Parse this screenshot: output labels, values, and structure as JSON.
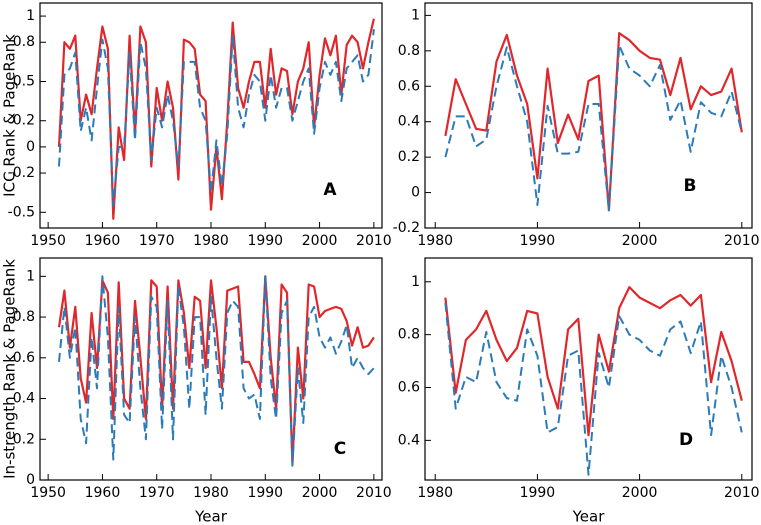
{
  "chart_data": [
    {
      "type": "line",
      "ylabel": "ICC Rank & PageRank",
      "annotation": "A",
      "x": [
        1952,
        1953,
        1954,
        1955,
        1956,
        1957,
        1958,
        1959,
        1960,
        1961,
        1962,
        1963,
        1964,
        1965,
        1966,
        1967,
        1968,
        1969,
        1970,
        1971,
        1972,
        1973,
        1974,
        1975,
        1976,
        1977,
        1978,
        1979,
        1980,
        1981,
        1982,
        1983,
        1984,
        1985,
        1986,
        1987,
        1988,
        1989,
        1990,
        1991,
        1992,
        1993,
        1994,
        1995,
        1996,
        1997,
        1998,
        1999,
        2000,
        2001,
        2002,
        2003,
        2004,
        2005,
        2006,
        2007,
        2008,
        2009,
        2010
      ],
      "xlim": [
        1948.5,
        2011.5
      ],
      "xticks": [
        1950,
        1960,
        1970,
        1980,
        1990,
        2000,
        2010
      ],
      "ylim": [
        -0.62,
        1.1
      ],
      "yticks": [
        -0.5,
        -0.2,
        0,
        0.2,
        0.5,
        0.8,
        1
      ],
      "series": [
        {
          "color": "#e0282c",
          "linestyle": "solid",
          "values": [
            0.0,
            0.8,
            0.75,
            0.85,
            0.2,
            0.4,
            0.25,
            0.6,
            0.92,
            0.75,
            -0.55,
            0.15,
            -0.1,
            0.85,
            0.1,
            0.92,
            0.8,
            -0.15,
            0.45,
            0.2,
            0.5,
            0.3,
            -0.25,
            0.82,
            0.8,
            0.75,
            0.4,
            0.35,
            -0.48,
            0.0,
            -0.4,
            0.2,
            0.95,
            0.45,
            0.3,
            0.5,
            0.65,
            0.65,
            0.3,
            0.75,
            0.4,
            0.6,
            0.58,
            0.25,
            0.5,
            0.6,
            0.8,
            0.15,
            0.55,
            0.83,
            0.7,
            0.85,
            0.4,
            0.78,
            0.85,
            0.8,
            0.6,
            0.8,
            0.98
          ]
        },
        {
          "color": "#2b7bb9",
          "linestyle": "dashed",
          "values": [
            -0.15,
            0.55,
            0.6,
            0.72,
            0.12,
            0.3,
            0.05,
            0.45,
            0.82,
            0.6,
            -0.45,
            0.0,
            0.0,
            0.72,
            0.05,
            0.8,
            0.6,
            -0.1,
            0.3,
            0.15,
            0.4,
            0.2,
            -0.15,
            0.65,
            0.65,
            0.65,
            0.3,
            0.2,
            -0.35,
            0.05,
            -0.3,
            0.1,
            0.85,
            0.3,
            0.15,
            0.4,
            0.55,
            0.5,
            0.2,
            0.55,
            0.3,
            0.45,
            0.45,
            0.2,
            0.35,
            0.5,
            0.6,
            0.1,
            0.45,
            0.65,
            0.55,
            0.65,
            0.35,
            0.6,
            0.65,
            0.7,
            0.5,
            0.55,
            0.9
          ]
        }
      ]
    },
    {
      "type": "line",
      "annotation": "B",
      "x": [
        1981,
        1982,
        1983,
        1984,
        1985,
        1986,
        1987,
        1988,
        1989,
        1990,
        1991,
        1992,
        1993,
        1994,
        1995,
        1996,
        1997,
        1998,
        1999,
        2000,
        2001,
        2002,
        2003,
        2004,
        2005,
        2006,
        2007,
        2008,
        2009,
        2010
      ],
      "xlim": [
        1979,
        2011
      ],
      "xticks": [
        1980,
        1990,
        2000,
        2010
      ],
      "ylim": [
        -0.2,
        1.07
      ],
      "yticks": [
        -0.2,
        0,
        0.2,
        0.4,
        0.6,
        0.8,
        1
      ],
      "series": [
        {
          "color": "#e0282c",
          "linestyle": "solid",
          "values": [
            0.32,
            0.64,
            0.5,
            0.36,
            0.35,
            0.74,
            0.89,
            0.66,
            0.5,
            0.08,
            0.7,
            0.28,
            0.44,
            0.3,
            0.63,
            0.66,
            -0.1,
            0.9,
            0.86,
            0.8,
            0.76,
            0.75,
            0.55,
            0.76,
            0.47,
            0.6,
            0.55,
            0.57,
            0.7,
            0.34
          ]
        },
        {
          "color": "#2b7bb9",
          "linestyle": "dashed",
          "values": [
            0.2,
            0.43,
            0.43,
            0.26,
            0.3,
            0.6,
            0.82,
            0.6,
            0.4,
            -0.07,
            0.49,
            0.22,
            0.22,
            0.23,
            0.5,
            0.5,
            -0.1,
            0.83,
            0.7,
            0.66,
            0.6,
            0.72,
            0.41,
            0.52,
            0.23,
            0.51,
            0.45,
            0.43,
            0.57,
            0.34
          ]
        }
      ]
    },
    {
      "type": "line",
      "ylabel": "In-strength Rank & PageRank",
      "xlabel": "Year",
      "annotation": "C",
      "x": [
        1952,
        1953,
        1954,
        1955,
        1956,
        1957,
        1958,
        1959,
        1960,
        1961,
        1962,
        1963,
        1964,
        1965,
        1966,
        1967,
        1968,
        1969,
        1970,
        1971,
        1972,
        1973,
        1974,
        1975,
        1976,
        1977,
        1978,
        1979,
        1980,
        1981,
        1982,
        1983,
        1984,
        1985,
        1986,
        1987,
        1988,
        1989,
        1990,
        1991,
        1992,
        1993,
        1994,
        1995,
        1996,
        1997,
        1998,
        1999,
        2000,
        2001,
        2002,
        2003,
        2004,
        2005,
        2006,
        2007,
        2008,
        2009,
        2010
      ],
      "xlim": [
        1948.5,
        2011.5
      ],
      "xticks": [
        1950,
        1960,
        1970,
        1980,
        1990,
        2000,
        2010
      ],
      "ylim": [
        0,
        1.09
      ],
      "yticks": [
        0,
        0.2,
        0.4,
        0.6,
        0.8,
        1
      ],
      "series": [
        {
          "color": "#e0282c",
          "linestyle": "solid",
          "values": [
            0.75,
            0.93,
            0.65,
            0.85,
            0.5,
            0.38,
            0.82,
            0.55,
            0.98,
            0.92,
            0.3,
            0.97,
            0.4,
            0.35,
            0.88,
            0.6,
            0.3,
            0.98,
            0.95,
            0.35,
            0.95,
            0.35,
            0.98,
            0.82,
            0.55,
            0.9,
            0.88,
            0.55,
            0.98,
            0.75,
            0.45,
            0.93,
            0.94,
            0.95,
            0.58,
            0.58,
            0.52,
            0.45,
            1.0,
            0.6,
            0.35,
            0.96,
            0.92,
            0.08,
            0.65,
            0.4,
            0.96,
            0.95,
            0.8,
            0.83,
            0.84,
            0.85,
            0.84,
            0.78,
            0.66,
            0.75,
            0.65,
            0.66,
            0.7
          ]
        },
        {
          "color": "#2b7bb9",
          "linestyle": "dashed",
          "values": [
            0.58,
            0.85,
            0.6,
            0.75,
            0.3,
            0.18,
            0.7,
            0.45,
            1.0,
            0.7,
            0.1,
            0.85,
            0.32,
            0.28,
            0.8,
            0.45,
            0.2,
            0.9,
            0.85,
            0.25,
            0.88,
            0.2,
            0.95,
            0.75,
            0.35,
            0.8,
            0.8,
            0.32,
            0.9,
            0.6,
            0.35,
            0.82,
            0.88,
            0.85,
            0.45,
            0.4,
            0.42,
            0.3,
            1.0,
            0.5,
            0.3,
            0.82,
            0.88,
            0.07,
            0.55,
            0.28,
            0.8,
            0.85,
            0.7,
            0.65,
            0.7,
            0.62,
            0.68,
            0.76,
            0.55,
            0.6,
            0.55,
            0.52,
            0.55
          ]
        }
      ]
    },
    {
      "type": "line",
      "xlabel": "Year",
      "annotation": "D",
      "x": [
        1981,
        1982,
        1983,
        1984,
        1985,
        1986,
        1987,
        1988,
        1989,
        1990,
        1991,
        1992,
        1993,
        1994,
        1995,
        1996,
        1997,
        1998,
        1999,
        2000,
        2001,
        2002,
        2003,
        2004,
        2005,
        2006,
        2007,
        2008,
        2009,
        2010
      ],
      "xlim": [
        1979,
        2011
      ],
      "xticks": [
        1980,
        1990,
        2000,
        2010
      ],
      "ylim": [
        0.25,
        1.09
      ],
      "yticks": [
        0.4,
        0.6,
        0.8,
        1
      ],
      "series": [
        {
          "color": "#e0282c",
          "linestyle": "solid",
          "values": [
            0.94,
            0.58,
            0.78,
            0.82,
            0.89,
            0.78,
            0.7,
            0.75,
            0.89,
            0.88,
            0.64,
            0.52,
            0.82,
            0.86,
            0.42,
            0.8,
            0.66,
            0.9,
            0.98,
            0.94,
            0.92,
            0.9,
            0.93,
            0.95,
            0.91,
            0.95,
            0.62,
            0.81,
            0.7,
            0.55
          ]
        },
        {
          "color": "#2b7bb9",
          "linestyle": "dashed",
          "values": [
            0.92,
            0.52,
            0.64,
            0.62,
            0.81,
            0.62,
            0.56,
            0.55,
            0.82,
            0.72,
            0.43,
            0.45,
            0.72,
            0.74,
            0.27,
            0.73,
            0.6,
            0.87,
            0.8,
            0.78,
            0.74,
            0.72,
            0.82,
            0.85,
            0.73,
            0.85,
            0.42,
            0.72,
            0.6,
            0.43
          ]
        }
      ]
    }
  ]
}
